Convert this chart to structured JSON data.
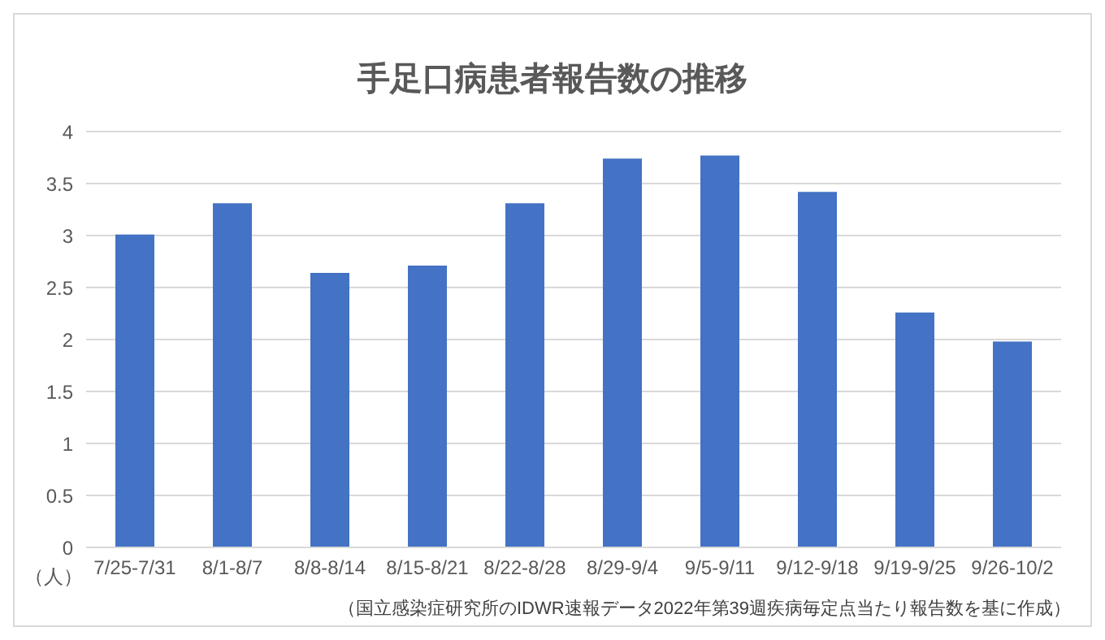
{
  "chart_data": {
    "type": "bar",
    "title": "手足口病患者報告数の推移",
    "ylabel": "（人）",
    "categories": [
      "7/25-7/31",
      "8/1-8/7",
      "8/8-8/14",
      "8/15-8/21",
      "8/22-8/28",
      "8/29-9/4",
      "9/5-9/11",
      "9/12-9/18",
      "9/19-9/25",
      "9/26-10/2"
    ],
    "values": [
      3.01,
      3.31,
      2.64,
      2.71,
      3.31,
      3.74,
      3.77,
      3.42,
      2.26,
      1.98
    ],
    "color": "#4472c4",
    "ylim": [
      0,
      4
    ],
    "yticks": [
      0,
      0.5,
      1,
      1.5,
      2,
      2.5,
      3,
      3.5,
      4
    ],
    "grid": "y",
    "legend": false,
    "annotations": [
      "（国立感染症研究所のIDWR速報データ2022年第39週疾病毎定点当たり報告数を基に作成）"
    ]
  }
}
